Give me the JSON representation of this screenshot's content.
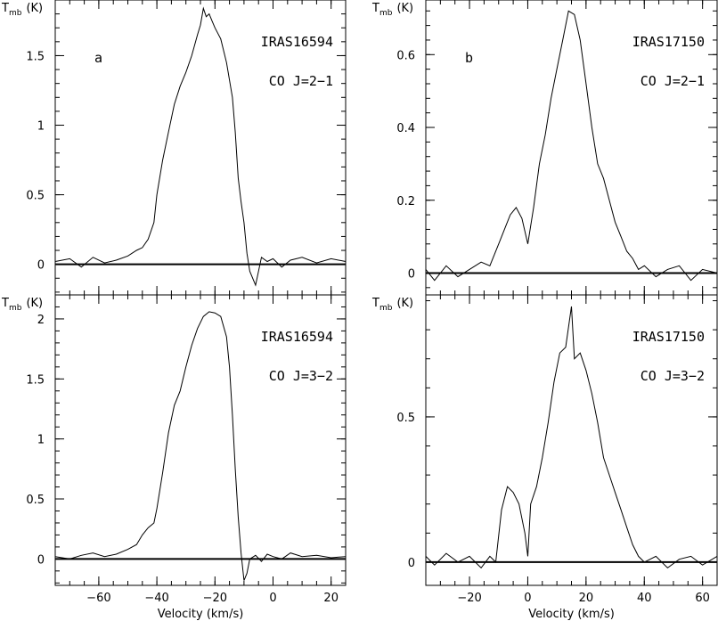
{
  "chart_data": [
    {
      "type": "line",
      "panel_label": "a",
      "source": "IRAS16594",
      "line": "CO J=2−1",
      "ylabel": "T",
      "ylabel_sub": "mb",
      "ylabel_unit": "(K)",
      "xlabel": "",
      "xlim": [
        -75,
        25
      ],
      "ylim": [
        -0.22,
        1.9
      ],
      "yticks": [
        0,
        0.5,
        1,
        1.5
      ],
      "yticklabels": [
        "0",
        "0.5",
        "1",
        "1.5"
      ],
      "xticks": [
        -60,
        -40,
        -20,
        0,
        20
      ],
      "xticklabels": [],
      "series": [
        {
          "x": [
            -75,
            -70,
            -66,
            -62,
            -58,
            -54,
            -50,
            -47,
            -45,
            -43,
            -41,
            -40,
            -38,
            -36,
            -34,
            -32,
            -30,
            -28,
            -26,
            -25,
            -24,
            -23,
            -22,
            -21,
            -20,
            -18,
            -16,
            -14,
            -13,
            -12,
            -11,
            -10,
            -9,
            -8,
            -6,
            -4,
            -2,
            0,
            3,
            6,
            10,
            15,
            20,
            25
          ],
          "y": [
            0.02,
            0.04,
            -0.02,
            0.05,
            0.01,
            0.03,
            0.06,
            0.1,
            0.12,
            0.18,
            0.3,
            0.5,
            0.75,
            0.95,
            1.15,
            1.28,
            1.38,
            1.5,
            1.65,
            1.72,
            1.84,
            1.78,
            1.8,
            1.75,
            1.7,
            1.62,
            1.45,
            1.2,
            0.95,
            0.62,
            0.45,
            0.3,
            0.08,
            -0.05,
            -0.15,
            0.05,
            0.02,
            0.04,
            -0.02,
            0.03,
            0.05,
            0.01,
            0.04,
            0.02
          ]
        }
      ]
    },
    {
      "type": "line",
      "panel_label": "b",
      "source": "IRAS17150",
      "line": "CO J=2−1",
      "ylabel": "T",
      "ylabel_sub": "mb",
      "ylabel_unit": "(K)",
      "xlabel": "",
      "xlim": [
        -35,
        65
      ],
      "ylim": [
        -0.06,
        0.75
      ],
      "yticks": [
        0,
        0.2,
        0.4,
        0.6
      ],
      "yticklabels": [
        "0",
        "0.2",
        "0.4",
        "0.6"
      ],
      "xticks": [
        -20,
        0,
        20,
        40,
        60
      ],
      "xticklabels": [],
      "series": [
        {
          "x": [
            -35,
            -32,
            -28,
            -24,
            -20,
            -16,
            -13,
            -10,
            -8,
            -6,
            -4,
            -2,
            0,
            2,
            4,
            6,
            8,
            10,
            12,
            14,
            16,
            18,
            20,
            22,
            24,
            26,
            28,
            30,
            32,
            34,
            36,
            38,
            40,
            44,
            48,
            52,
            56,
            60,
            65
          ],
          "y": [
            0.01,
            -0.02,
            0.02,
            -0.01,
            0.01,
            0.03,
            0.02,
            0.08,
            0.12,
            0.16,
            0.18,
            0.15,
            0.08,
            0.18,
            0.3,
            0.38,
            0.48,
            0.56,
            0.64,
            0.72,
            0.71,
            0.64,
            0.52,
            0.4,
            0.3,
            0.26,
            0.2,
            0.14,
            0.1,
            0.06,
            0.04,
            0.01,
            0.02,
            -0.01,
            0.01,
            0.02,
            -0.02,
            0.01,
            0.0
          ]
        }
      ]
    },
    {
      "type": "line",
      "panel_label": "",
      "source": "IRAS16594",
      "line": "CO J=3−2",
      "ylabel": "T",
      "ylabel_sub": "mb",
      "ylabel_unit": "(K)",
      "xlabel": "Velocity  (km/s)",
      "xlim": [
        -75,
        25
      ],
      "ylim": [
        -0.22,
        2.2
      ],
      "yticks": [
        0,
        0.5,
        1,
        1.5,
        2
      ],
      "yticklabels": [
        "0",
        "0.5",
        "1",
        "1.5",
        "2"
      ],
      "xticks": [
        -60,
        -40,
        -20,
        0,
        20
      ],
      "xticklabels": [
        "−60",
        "−40",
        "−20",
        "0",
        "20"
      ],
      "series": [
        {
          "x": [
            -75,
            -70,
            -66,
            -62,
            -58,
            -54,
            -50,
            -47,
            -45,
            -43,
            -41,
            -40,
            -38,
            -36,
            -34,
            -32,
            -30,
            -28,
            -26,
            -24,
            -22,
            -20,
            -18,
            -16,
            -15,
            -14,
            -13,
            -12,
            -11,
            -10,
            -9,
            -8,
            -6,
            -4,
            -2,
            0,
            3,
            6,
            10,
            15,
            20,
            25
          ],
          "y": [
            0.02,
            0.0,
            0.03,
            0.05,
            0.02,
            0.04,
            0.08,
            0.12,
            0.2,
            0.26,
            0.3,
            0.42,
            0.72,
            1.05,
            1.28,
            1.4,
            1.6,
            1.78,
            1.92,
            2.02,
            2.06,
            2.05,
            2.02,
            1.85,
            1.6,
            1.2,
            0.75,
            0.35,
            0.05,
            -0.18,
            -0.12,
            0.0,
            0.03,
            -0.02,
            0.04,
            0.02,
            0.0,
            0.05,
            0.02,
            0.03,
            0.01,
            0.02
          ]
        }
      ]
    },
    {
      "type": "line",
      "panel_label": "",
      "source": "IRAS17150",
      "line": "CO J=3−2",
      "ylabel": "T",
      "ylabel_sub": "mb",
      "ylabel_unit": "(K)",
      "xlabel": "Velocity  (km/s)",
      "xlim": [
        -35,
        65
      ],
      "ylim": [
        -0.08,
        0.92
      ],
      "yticks": [
        0,
        0.5
      ],
      "yticklabels": [
        "0",
        "0.5"
      ],
      "xticks": [
        -20,
        0,
        20,
        40,
        60
      ],
      "xticklabels": [
        "−20",
        "0",
        "20",
        "40",
        "60"
      ],
      "series": [
        {
          "x": [
            -35,
            -32,
            -28,
            -24,
            -20,
            -16,
            -13,
            -11,
            -9,
            -7,
            -5,
            -3,
            -1,
            0,
            1,
            3,
            5,
            7,
            9,
            11,
            13,
            15,
            16,
            18,
            20,
            22,
            24,
            26,
            28,
            30,
            32,
            34,
            36,
            38,
            40,
            44,
            48,
            52,
            56,
            60,
            65
          ],
          "y": [
            0.02,
            -0.01,
            0.03,
            0.0,
            0.02,
            -0.02,
            0.02,
            0.0,
            0.18,
            0.26,
            0.24,
            0.2,
            0.1,
            0.02,
            0.2,
            0.26,
            0.36,
            0.48,
            0.62,
            0.72,
            0.74,
            0.88,
            0.7,
            0.72,
            0.66,
            0.58,
            0.48,
            0.36,
            0.3,
            0.24,
            0.18,
            0.12,
            0.06,
            0.02,
            0.0,
            0.02,
            -0.02,
            0.01,
            0.02,
            -0.01,
            0.02
          ]
        }
      ]
    }
  ]
}
